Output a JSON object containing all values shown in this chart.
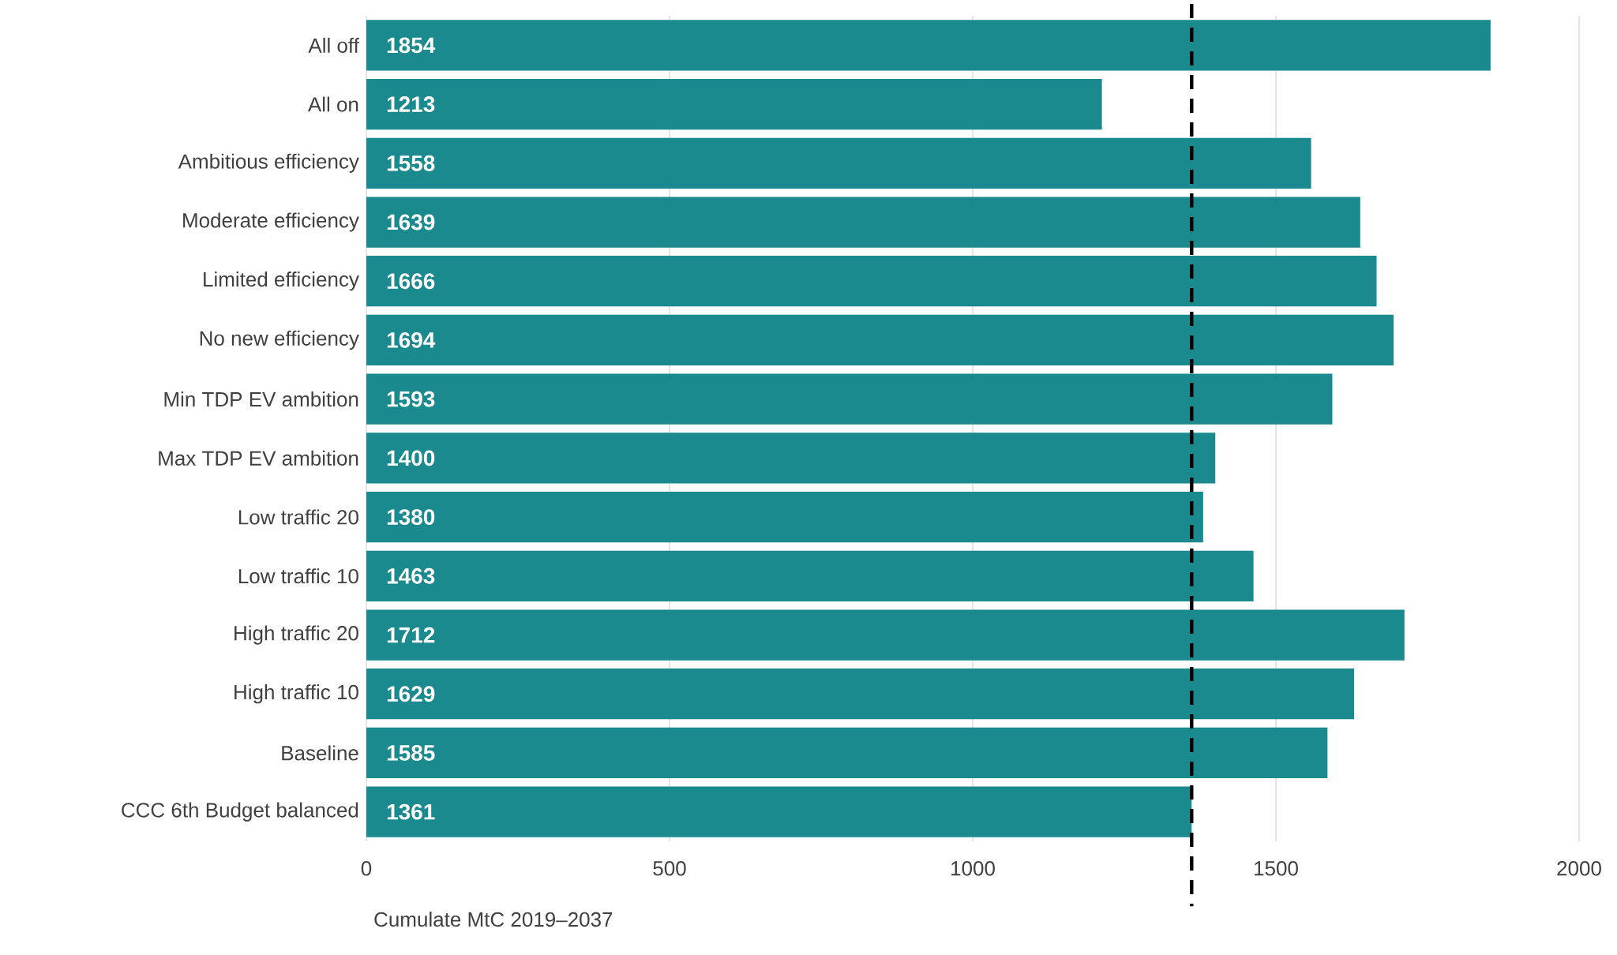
{
  "chart_data": {
    "type": "bar",
    "orientation": "horizontal",
    "categories": [
      "All off",
      "All on",
      "Ambitious efficiency",
      "Moderate efficiency",
      "Limited efficiency",
      "No new efficiency",
      "Min TDP EV ambition",
      "Max TDP EV ambition",
      "Low traffic 20",
      "Low traffic 10",
      "High traffic 20",
      "High traffic 10",
      "Baseline",
      "CCC 6th Budget balanced"
    ],
    "values": [
      1854,
      1213,
      1558,
      1639,
      1666,
      1694,
      1593,
      1400,
      1380,
      1463,
      1712,
      1629,
      1585,
      1361
    ],
    "color": "#1a8a8f",
    "xlim": [
      0,
      2000
    ],
    "xticks": [
      0,
      500,
      1000,
      1500,
      2000
    ],
    "xlabel": "Cumulate MtC 2019–2037",
    "grid": "x",
    "data_labels": true,
    "ref_lines": [
      {
        "axis": "x",
        "value": 1361,
        "color": "#000000",
        "line_style": "dashed"
      }
    ]
  }
}
